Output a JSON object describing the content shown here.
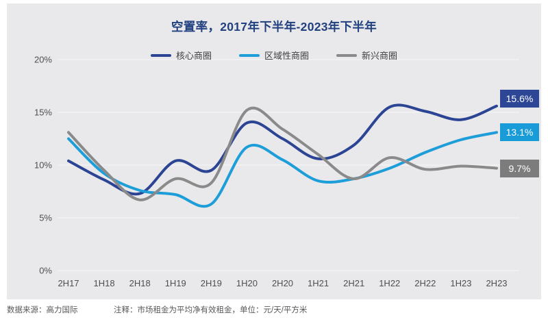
{
  "title": "空置率，2017年下半年-2023年下半年",
  "footer": {
    "source": "数据来源：高力国际",
    "note": "注释：市场租金为平均净有效租金，单位：元/天/平方米"
  },
  "colors": {
    "panel_background": "#E9E9EB",
    "title_text": "#21407F",
    "axis_text": "#4E4E50",
    "gridline": "#F4F4F6"
  },
  "chart_data": {
    "type": "line",
    "title": "空置率，2017年下半年-2023年下半年",
    "categories": [
      "2H17",
      "1H18",
      "2H18",
      "1H19",
      "2H19",
      "1H20",
      "2H20",
      "1H21",
      "2H21",
      "1H22",
      "2H22",
      "1H23",
      "2H23"
    ],
    "series": [
      {
        "name": "核心商圈",
        "color": "#2B4493",
        "label_bg": "#2D4695",
        "end_label": "15.6%",
        "values": [
          10.4,
          8.6,
          7.3,
          10.4,
          9.5,
          14.0,
          12.5,
          10.6,
          11.9,
          15.5,
          15.1,
          14.3,
          15.6
        ]
      },
      {
        "name": "区域性商圈",
        "color": "#1E9ED9",
        "label_bg": "#199BD8",
        "end_label": "13.1%",
        "values": [
          12.5,
          9.2,
          7.6,
          7.2,
          6.3,
          11.7,
          10.5,
          8.5,
          8.7,
          9.7,
          11.2,
          12.4,
          13.1
        ]
      },
      {
        "name": "新兴商圈",
        "color": "#8A8A8A",
        "label_bg": "#7C7C7C",
        "end_label": "9.7%",
        "values": [
          13.1,
          9.5,
          6.7,
          8.7,
          8.3,
          15.2,
          13.4,
          11.0,
          8.7,
          10.7,
          9.6,
          9.9,
          9.7
        ]
      }
    ],
    "ylabels": [
      "0%",
      "5%",
      "10%",
      "15%",
      "20%"
    ],
    "ylim": [
      0,
      20
    ],
    "ytick_step": 5,
    "grid": "horizontal",
    "legend_position": "top"
  }
}
